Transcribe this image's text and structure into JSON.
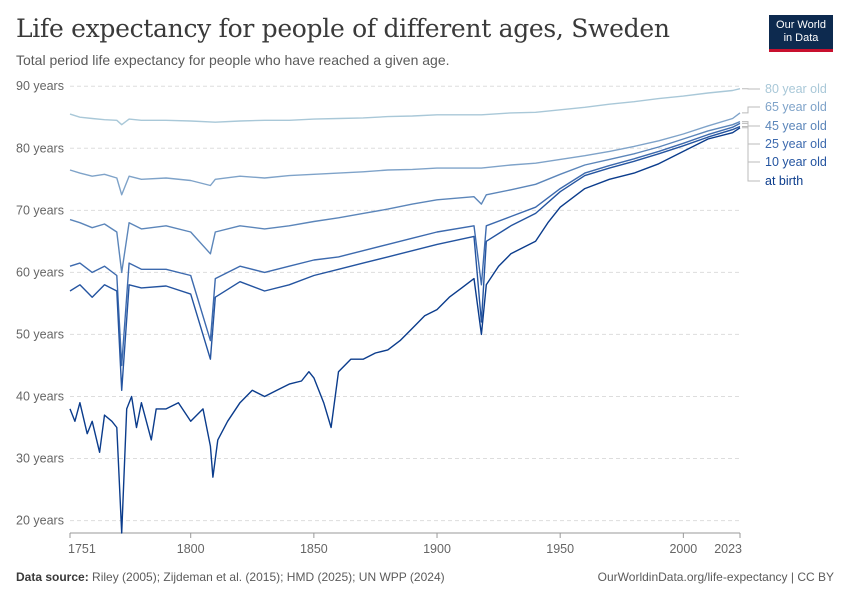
{
  "header": {
    "title": "Life expectancy for people of different ages, Sweden",
    "subtitle": "Total period life expectancy for people who have reached a given age."
  },
  "logo": {
    "line1": "Our World",
    "line2": "in Data"
  },
  "footer": {
    "source_label": "Data source:",
    "source_text": " Riley (2005); Zijdeman et al. (2015); HMD (2025); UN WPP (2024)",
    "credit": "OurWorldinData.org/life-expectancy | CC BY"
  },
  "colors": {
    "at_birth": "#0b3c8c",
    "age10": "#2454a0",
    "age25": "#3d6aae",
    "age45": "#5c86ba",
    "age65": "#7fa3c9",
    "age80": "#a9c8d8",
    "grid": "#dddddd",
    "axis": "#999999"
  },
  "chart_data": {
    "type": "line",
    "title": "Life expectancy for people of different ages, Sweden",
    "x_ticks": [
      1751,
      1800,
      1850,
      1900,
      1950,
      2000,
      2023
    ],
    "x_tick_labels": [
      "1751",
      "1800",
      "1850",
      "1900",
      "1950",
      "2000",
      "2023"
    ],
    "y_ticks": [
      20,
      30,
      40,
      50,
      60,
      70,
      80,
      90
    ],
    "y_tick_labels": [
      "20 years",
      "30 years",
      "40 years",
      "50 years",
      "60 years",
      "70 years",
      "80 years",
      "90 years"
    ],
    "xlim": [
      1751,
      2023
    ],
    "ylim": [
      18,
      91
    ],
    "grid": true,
    "legend_placement": "right",
    "series": [
      {
        "name": "80 year old",
        "color_key": "age80",
        "points": [
          [
            1751,
            85.5
          ],
          [
            1755,
            85
          ],
          [
            1760,
            84.8
          ],
          [
            1765,
            84.6
          ],
          [
            1770,
            84.5
          ],
          [
            1772,
            83.8
          ],
          [
            1775,
            84.7
          ],
          [
            1780,
            84.5
          ],
          [
            1790,
            84.5
          ],
          [
            1800,
            84.4
          ],
          [
            1810,
            84.2
          ],
          [
            1820,
            84.4
          ],
          [
            1830,
            84.5
          ],
          [
            1840,
            84.5
          ],
          [
            1850,
            84.7
          ],
          [
            1860,
            84.8
          ],
          [
            1870,
            84.9
          ],
          [
            1880,
            85.1
          ],
          [
            1890,
            85.2
          ],
          [
            1900,
            85.4
          ],
          [
            1918,
            85.4
          ],
          [
            1930,
            85.7
          ],
          [
            1940,
            85.8
          ],
          [
            1950,
            86.2
          ],
          [
            1960,
            86.6
          ],
          [
            1970,
            87.1
          ],
          [
            1980,
            87.5
          ],
          [
            1990,
            88
          ],
          [
            2000,
            88.4
          ],
          [
            2010,
            88.9
          ],
          [
            2020,
            89.3
          ],
          [
            2023,
            89.6
          ]
        ]
      },
      {
        "name": "65 year old",
        "color_key": "age65",
        "points": [
          [
            1751,
            76.5
          ],
          [
            1755,
            76
          ],
          [
            1760,
            75.5
          ],
          [
            1765,
            75.8
          ],
          [
            1770,
            75.2
          ],
          [
            1772,
            72.5
          ],
          [
            1775,
            75.5
          ],
          [
            1780,
            75
          ],
          [
            1790,
            75.2
          ],
          [
            1800,
            74.8
          ],
          [
            1808,
            74
          ],
          [
            1810,
            75
          ],
          [
            1820,
            75.5
          ],
          [
            1830,
            75.2
          ],
          [
            1840,
            75.6
          ],
          [
            1850,
            75.8
          ],
          [
            1860,
            76
          ],
          [
            1870,
            76.2
          ],
          [
            1880,
            76.5
          ],
          [
            1890,
            76.6
          ],
          [
            1900,
            76.8
          ],
          [
            1918,
            76.8
          ],
          [
            1930,
            77.3
          ],
          [
            1940,
            77.6
          ],
          [
            1950,
            78.2
          ],
          [
            1960,
            78.8
          ],
          [
            1970,
            79.5
          ],
          [
            1980,
            80.3
          ],
          [
            1990,
            81.2
          ],
          [
            2000,
            82.3
          ],
          [
            2010,
            83.6
          ],
          [
            2020,
            84.8
          ],
          [
            2023,
            85.7
          ]
        ]
      },
      {
        "name": "45 year old",
        "color_key": "age45",
        "points": [
          [
            1751,
            68.5
          ],
          [
            1755,
            68
          ],
          [
            1760,
            67.2
          ],
          [
            1765,
            67.8
          ],
          [
            1770,
            66.5
          ],
          [
            1772,
            60
          ],
          [
            1775,
            68
          ],
          [
            1780,
            67
          ],
          [
            1790,
            67.5
          ],
          [
            1800,
            66.5
          ],
          [
            1808,
            63
          ],
          [
            1810,
            66.5
          ],
          [
            1820,
            67.5
          ],
          [
            1830,
            67
          ],
          [
            1840,
            67.5
          ],
          [
            1850,
            68.2
          ],
          [
            1860,
            68.8
          ],
          [
            1870,
            69.5
          ],
          [
            1880,
            70.2
          ],
          [
            1890,
            71
          ],
          [
            1900,
            71.7
          ],
          [
            1915,
            72.2
          ],
          [
            1918,
            71
          ],
          [
            1920,
            72.5
          ],
          [
            1930,
            73.3
          ],
          [
            1940,
            74.2
          ],
          [
            1950,
            75.8
          ],
          [
            1960,
            77.3
          ],
          [
            1970,
            78.2
          ],
          [
            1980,
            79.1
          ],
          [
            1990,
            80.2
          ],
          [
            2000,
            81.5
          ],
          [
            2010,
            82.8
          ],
          [
            2020,
            83.8
          ],
          [
            2023,
            84.3
          ]
        ]
      },
      {
        "name": "25 year old",
        "color_key": "age25",
        "points": [
          [
            1751,
            61
          ],
          [
            1755,
            61.5
          ],
          [
            1760,
            60
          ],
          [
            1765,
            61
          ],
          [
            1770,
            59.5
          ],
          [
            1772,
            45
          ],
          [
            1775,
            61.5
          ],
          [
            1780,
            60.5
          ],
          [
            1790,
            60.5
          ],
          [
            1800,
            59.5
          ],
          [
            1808,
            49
          ],
          [
            1810,
            59
          ],
          [
            1820,
            61
          ],
          [
            1830,
            60
          ],
          [
            1840,
            61
          ],
          [
            1850,
            62
          ],
          [
            1860,
            62.5
          ],
          [
            1870,
            63.5
          ],
          [
            1880,
            64.5
          ],
          [
            1890,
            65.5
          ],
          [
            1900,
            66.5
          ],
          [
            1915,
            67.5
          ],
          [
            1918,
            58
          ],
          [
            1920,
            67.5
          ],
          [
            1930,
            69
          ],
          [
            1940,
            70.5
          ],
          [
            1950,
            73.5
          ],
          [
            1960,
            76
          ],
          [
            1970,
            77.2
          ],
          [
            1980,
            78.3
          ],
          [
            1990,
            79.5
          ],
          [
            2000,
            80.8
          ],
          [
            2010,
            82.2
          ],
          [
            2020,
            83.4
          ],
          [
            2023,
            84
          ]
        ]
      },
      {
        "name": "10 year old",
        "color_key": "age10",
        "points": [
          [
            1751,
            57
          ],
          [
            1755,
            58
          ],
          [
            1760,
            56
          ],
          [
            1765,
            58
          ],
          [
            1770,
            57
          ],
          [
            1772,
            41
          ],
          [
            1775,
            58
          ],
          [
            1780,
            57.5
          ],
          [
            1790,
            57.8
          ],
          [
            1800,
            56.5
          ],
          [
            1808,
            46
          ],
          [
            1810,
            56
          ],
          [
            1820,
            58.5
          ],
          [
            1830,
            57
          ],
          [
            1840,
            58
          ],
          [
            1850,
            59.5
          ],
          [
            1860,
            60.5
          ],
          [
            1870,
            61.5
          ],
          [
            1880,
            62.5
          ],
          [
            1890,
            63.5
          ],
          [
            1900,
            64.5
          ],
          [
            1915,
            65.8
          ],
          [
            1918,
            52
          ],
          [
            1920,
            65
          ],
          [
            1930,
            67.5
          ],
          [
            1940,
            69.5
          ],
          [
            1950,
            73
          ],
          [
            1960,
            75.6
          ],
          [
            1970,
            76.8
          ],
          [
            1980,
            77.9
          ],
          [
            1990,
            79.1
          ],
          [
            2000,
            80.4
          ],
          [
            2010,
            81.8
          ],
          [
            2020,
            83
          ],
          [
            2023,
            83.5
          ]
        ]
      },
      {
        "name": "at birth",
        "color_key": "at_birth",
        "points": [
          [
            1751,
            38
          ],
          [
            1753,
            36
          ],
          [
            1755,
            39
          ],
          [
            1758,
            34
          ],
          [
            1760,
            36
          ],
          [
            1763,
            31
          ],
          [
            1765,
            37
          ],
          [
            1768,
            36
          ],
          [
            1770,
            35
          ],
          [
            1772,
            18
          ],
          [
            1774,
            38
          ],
          [
            1776,
            40
          ],
          [
            1778,
            35
          ],
          [
            1780,
            39
          ],
          [
            1784,
            33
          ],
          [
            1786,
            38
          ],
          [
            1790,
            38
          ],
          [
            1795,
            39
          ],
          [
            1800,
            36
          ],
          [
            1805,
            38
          ],
          [
            1808,
            32
          ],
          [
            1809,
            27
          ],
          [
            1811,
            33
          ],
          [
            1815,
            36
          ],
          [
            1820,
            39
          ],
          [
            1825,
            41
          ],
          [
            1830,
            40
          ],
          [
            1835,
            41
          ],
          [
            1840,
            42
          ],
          [
            1845,
            42.5
          ],
          [
            1848,
            44
          ],
          [
            1850,
            43
          ],
          [
            1854,
            39
          ],
          [
            1857,
            35
          ],
          [
            1860,
            44
          ],
          [
            1865,
            46
          ],
          [
            1870,
            46
          ],
          [
            1875,
            47
          ],
          [
            1880,
            47.5
          ],
          [
            1885,
            49
          ],
          [
            1890,
            51
          ],
          [
            1895,
            53
          ],
          [
            1900,
            54
          ],
          [
            1905,
            56
          ],
          [
            1910,
            57.5
          ],
          [
            1915,
            59
          ],
          [
            1918,
            50
          ],
          [
            1920,
            58
          ],
          [
            1925,
            61
          ],
          [
            1930,
            63
          ],
          [
            1935,
            64
          ],
          [
            1940,
            65
          ],
          [
            1945,
            68
          ],
          [
            1950,
            70.5
          ],
          [
            1960,
            73.5
          ],
          [
            1970,
            75
          ],
          [
            1980,
            76
          ],
          [
            1990,
            77.5
          ],
          [
            2000,
            79.5
          ],
          [
            2010,
            81.5
          ],
          [
            2020,
            82.5
          ],
          [
            2023,
            83.3
          ]
        ]
      }
    ]
  }
}
